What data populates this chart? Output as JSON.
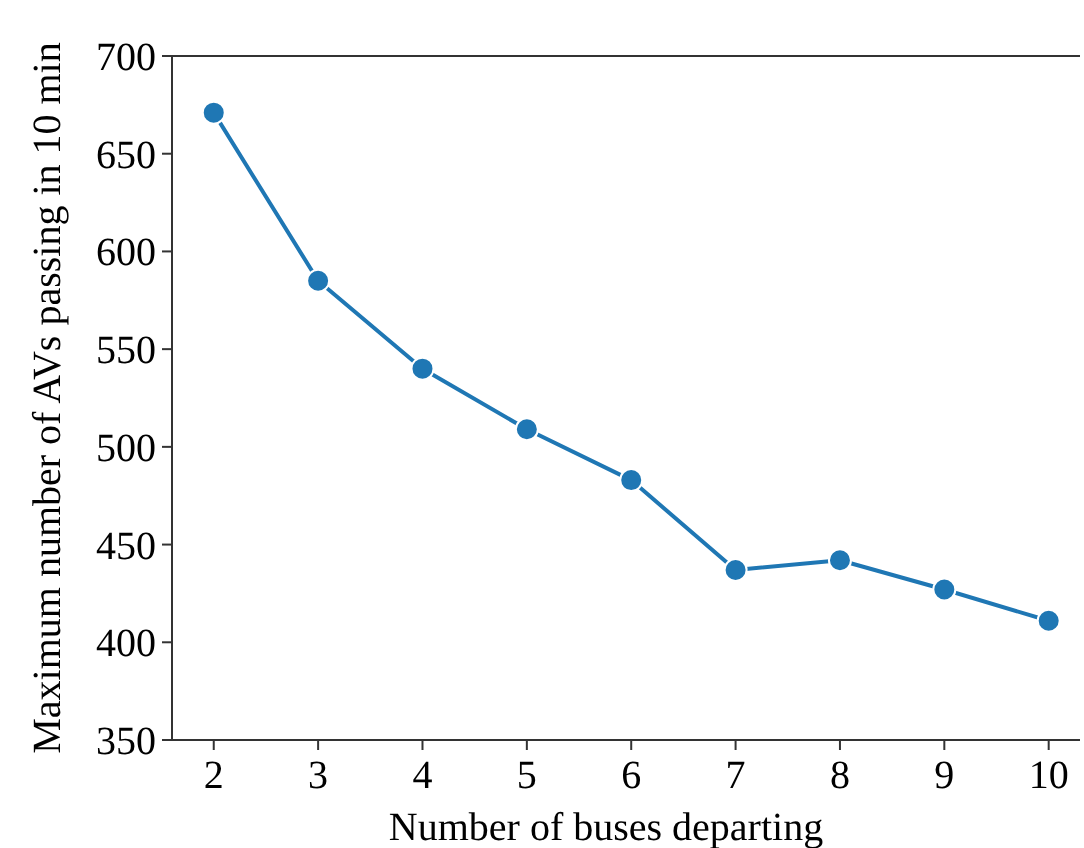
{
  "chart_data": {
    "type": "line",
    "xlabel": "Number of buses departing",
    "ylabel": "Maximum number of AVs passing in 10 min",
    "x": [
      2,
      3,
      4,
      5,
      6,
      7,
      8,
      9,
      10
    ],
    "series": [
      {
        "color": "#1f77b4",
        "values": [
          671,
          585,
          540,
          509,
          483,
          437,
          442,
          427,
          411
        ]
      }
    ],
    "xlim": [
      1.6,
      10.3
    ],
    "xticks": [
      2,
      3,
      4,
      5,
      6,
      7,
      8,
      9,
      10
    ],
    "ylim": [
      350,
      700
    ],
    "yticks": [
      350,
      400,
      450,
      500,
      550,
      600,
      650,
      700
    ],
    "marker": "circle",
    "line_style": "solid"
  }
}
